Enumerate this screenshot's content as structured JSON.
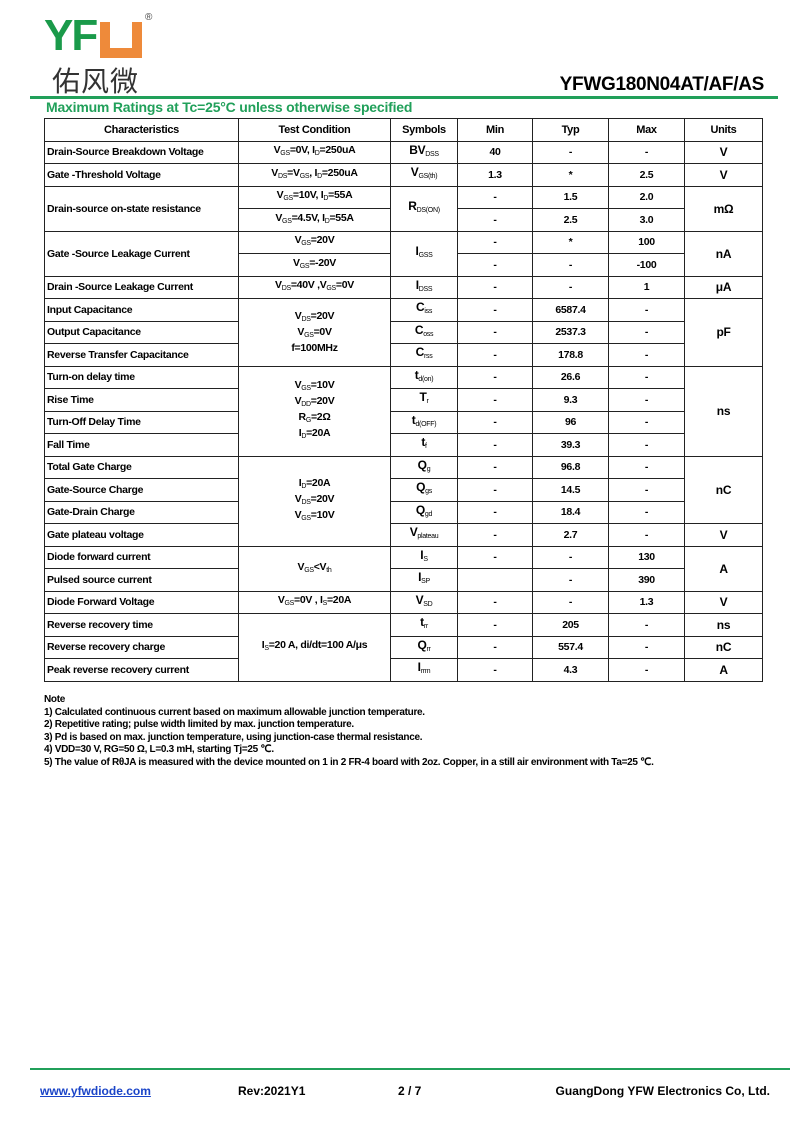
{
  "logo": {
    "text": "YFU",
    "chinese": "佑风微",
    "registered": "®"
  },
  "header": {
    "part_number": "YFWG180N04AT/AF/AS",
    "subtitle": "Maximum Ratings at Tc=25°C unless otherwise specified"
  },
  "colors": {
    "brand_green": "#21a05a",
    "logo_orange": "#ee8a3a",
    "link_blue": "#1a44c8"
  },
  "table": {
    "columns": [
      "Characteristics",
      "Test Condition",
      "Symbols",
      "Min",
      "Typ",
      "Max",
      "Units"
    ],
    "rows": [
      [
        "Drain-Source Breakdown Voltage",
        "V_{GS}=0V, I_{D}=250uA",
        "BV_{DSS}",
        "40",
        "-",
        "-",
        "V"
      ],
      [
        "Gate -Threshold  Voltage",
        "V_{DS}=V_{GS}, I_{D}=250uA",
        "V_{GS(th)}",
        "1.3",
        "*",
        "2.5",
        "V"
      ],
      [
        {
          "t": "Drain-source on-state resistance",
          "rs": 2
        },
        "V_{GS}=10V, I_{D}=55A",
        {
          "t": "R_{DS(ON)}",
          "rs": 2
        },
        "-",
        "1.5",
        "2.0",
        {
          "t": "mΩ",
          "rs": 2
        }
      ],
      [
        "V_{GS}=4.5V, I_{D}=55A",
        "-",
        "2.5",
        "3.0"
      ],
      [
        {
          "t": "Gate -Source Leakage Current",
          "rs": 2
        },
        "V_{GS}=20V",
        {
          "t": "I_{GSS}",
          "rs": 2
        },
        "-",
        "*",
        "100",
        {
          "t": "nA",
          "rs": 2
        }
      ],
      [
        "V_{GS}=-20V",
        "-",
        "-",
        "-100"
      ],
      [
        "Drain -Source Leakage Current",
        "V_{DS}=40V ,V_{GS}=0V",
        "I_{DSS}",
        "-",
        "-",
        "1",
        "μA"
      ],
      [
        "Input Capacitance",
        {
          "t": "V_{DS}=20V\nV_{GS}=0V\nf=100MHz",
          "rs": 3
        },
        "C_{iss}",
        "-",
        "6587.4",
        "-",
        {
          "t": "pF",
          "rs": 3
        }
      ],
      [
        "Output Capacitance",
        "C_{oss}",
        "-",
        "2537.3",
        "-"
      ],
      [
        "Reverse Transfer Capacitance",
        "C_{rss}",
        "-",
        "178.8",
        "-"
      ],
      [
        "Turn-on delay time",
        {
          "t": "V_{GS}=10V\nV_{DD}=20V\nR_{G}=2Ω\nI_{D}=20A",
          "rs": 4
        },
        "t_{d(on)}",
        "-",
        "26.6",
        "-",
        {
          "t": "ns",
          "rs": 4
        }
      ],
      [
        "Rise Time",
        "T_{r}",
        "-",
        "9.3",
        "-"
      ],
      [
        "Turn-Off  Delay Time",
        "t_{d(OFF)}",
        "-",
        "96",
        "-"
      ],
      [
        "Fall Time",
        "t_{f}",
        "-",
        "39.3",
        "-"
      ],
      [
        "Total Gate Charge",
        {
          "t": "I_{D}=20A\nV_{DS}=20V\nV_{GS}=10V",
          "rs": 4
        },
        "Q_{g}",
        "-",
        "96.8",
        "-",
        {
          "t": "nC",
          "rs": 3
        }
      ],
      [
        "Gate-Source Charge",
        "Q_{gs}",
        "-",
        "14.5",
        "-"
      ],
      [
        "Gate-Drain Charge",
        "Q_{gd}",
        "-",
        "18.4",
        "-"
      ],
      [
        "Gate plateau voltage",
        "V_{plateau}",
        "-",
        "2.7",
        "-",
        "V"
      ],
      [
        "Diode forward current",
        {
          "t": "V_{GS}<V_{th}",
          "rs": 2
        },
        "I_{S}",
        "-",
        "-",
        "130",
        {
          "t": "A",
          "rs": 2
        }
      ],
      [
        "Pulsed source current",
        "I_{SP}",
        "",
        "-",
        "390"
      ],
      [
        "Diode Forward Voltage",
        "V_{GS}=0V , I_{S}=20A",
        "V_{SD}",
        "-",
        "-",
        "1.3",
        "V"
      ],
      [
        "Reverse recovery time",
        {
          "t": "I_{S}=20 A, di/dt=100 A/μs",
          "rs": 3
        },
        "t_{rr}",
        "-",
        "205",
        "-",
        "ns"
      ],
      [
        "Reverse recovery charge",
        "Q_{rr}",
        "-",
        "557.4",
        "-",
        "nC"
      ],
      [
        "Peak reverse recovery current",
        "I_{rrm}",
        "-",
        "4.3",
        "-",
        "A"
      ]
    ]
  },
  "notes": {
    "title": "Note",
    "items": [
      "1) Calculated continuous current based on maximum allowable junction temperature.",
      "2) Repetitive rating; pulse width limited by max. junction temperature.",
      "3) Pd is based on max. junction temperature, using junction-case thermal resistance.",
      "4) VDD=30 V, RG=50 Ω, L=0.3 mH, starting Tj=25 ℃.",
      "5) The value of RθJA is measured with the device mounted on 1 in 2 FR-4 board with 2oz. Copper, in a still air environment with Ta=25 ℃."
    ]
  },
  "footer": {
    "website": "www.yfwdiode.com",
    "revision": "Rev:2021Y1",
    "page": "2 / 7",
    "company": "GuangDong YFW Electronics Co, Ltd."
  }
}
